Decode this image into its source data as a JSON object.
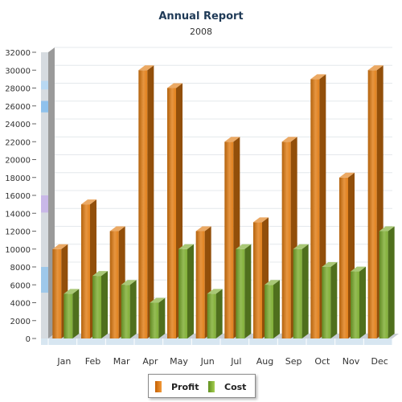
{
  "chart_data": {
    "type": "bar",
    "title": "Annual Report",
    "subtitle": "2008",
    "categories": [
      "Jan",
      "Feb",
      "Mar",
      "Apr",
      "May",
      "Jun",
      "Jul",
      "Aug",
      "Sep",
      "Oct",
      "Nov",
      "Dec"
    ],
    "series": [
      {
        "name": "Profit",
        "values": [
          10000,
          15000,
          12000,
          30000,
          28000,
          12000,
          22000,
          13000,
          22000,
          29000,
          18000,
          30000
        ],
        "color": "#e07a10"
      },
      {
        "name": "Cost",
        "values": [
          5000,
          7000,
          6000,
          4000,
          10000,
          5000,
          10000,
          6000,
          10000,
          8000,
          7500,
          12000
        ],
        "color": "#7aab2c"
      }
    ],
    "ylim": [
      0,
      32000
    ],
    "yticks": [
      "0",
      "2000",
      "4000",
      "6000",
      "8000",
      "10000",
      "12000",
      "14000",
      "16000",
      "18000",
      "20000",
      "22000",
      "24000",
      "26000",
      "28000",
      "30000",
      "32000"
    ],
    "grid": true,
    "legend_position": "bottom-center",
    "style": "3d-column"
  }
}
